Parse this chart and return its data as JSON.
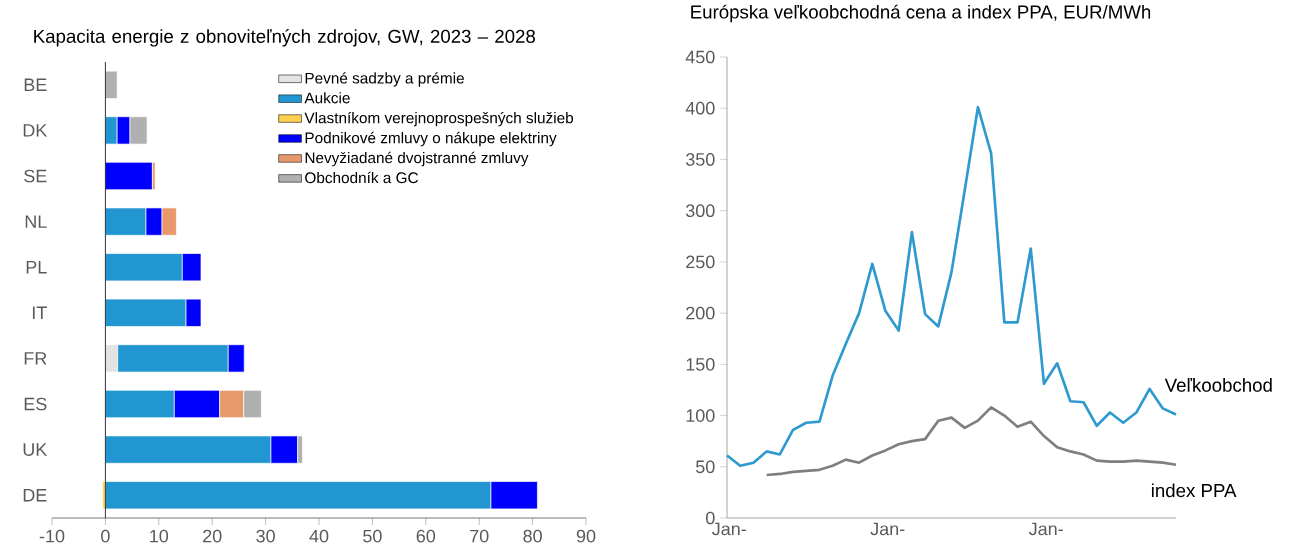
{
  "chart_data": [
    {
      "type": "bar",
      "orientation": "horizontal",
      "stacked": true,
      "title": "Kapacita energie z obnoviteľných zdrojov, GW, 2023 – 2028",
      "categories": [
        "BE",
        "DK",
        "SE",
        "NL",
        "PL",
        "IT",
        "FR",
        "ES",
        "UK",
        "DE"
      ],
      "series": [
        {
          "name": "Pevné sadzby a prémie",
          "color": "#e3e3e3",
          "values": [
            0,
            0,
            0,
            0,
            0,
            0,
            2.3,
            0,
            0,
            0
          ]
        },
        {
          "name": "Aukcie",
          "color": "#2196d0",
          "values": [
            0,
            2.2,
            0,
            7.6,
            14.4,
            15.1,
            20.7,
            12.9,
            31.0,
            72.2
          ]
        },
        {
          "name": "Vlastníkom verejnoprospešných služieb",
          "color": "#ffd04f",
          "values": [
            0,
            0,
            0,
            0,
            0,
            0,
            0,
            0,
            0,
            -0.5
          ]
        },
        {
          "name": "Podnikové zmluvy o nákupe elektriny",
          "color": "#0000ff",
          "values": [
            0,
            2.4,
            8.8,
            3.0,
            3.5,
            2.8,
            3.0,
            8.5,
            5.0,
            8.7
          ]
        },
        {
          "name": "Nevyžiadané dvojstranné zmluvy",
          "color": "#e8996c",
          "values": [
            0,
            0,
            0.5,
            2.7,
            0,
            0,
            0,
            4.5,
            0,
            0
          ]
        },
        {
          "name": "Obchodník a GC",
          "color": "#b0b0b0",
          "values": [
            2.2,
            3.2,
            0,
            0,
            0,
            0,
            0,
            3.3,
            0.9,
            0
          ]
        }
      ],
      "xlim": [
        -10,
        90
      ],
      "xticks": [
        -10,
        0,
        10,
        20,
        30,
        40,
        50,
        60,
        70,
        80,
        90
      ],
      "legend": "top right"
    },
    {
      "type": "line",
      "title": "Európska veľkoobchodná cena a index PPA, EUR/MWh",
      "categories": [
        "Jan-",
        null,
        null,
        null,
        null,
        null,
        null,
        null,
        null,
        null,
        null,
        null,
        "Jan-",
        null,
        null,
        null,
        null,
        null,
        null,
        null,
        null,
        null,
        null,
        null,
        "Jan-",
        null,
        null,
        null,
        null,
        null,
        null,
        null,
        null,
        null,
        null
      ],
      "series": [
        {
          "name": "Veľkoobchod",
          "color": "#2e9ad0",
          "values": [
            61,
            51,
            54,
            65,
            62,
            86,
            93,
            94,
            139,
            170,
            200,
            248,
            202,
            183,
            279,
            199,
            187,
            240,
            320,
            401,
            356,
            191,
            191,
            263,
            131,
            151,
            114,
            113,
            90,
            103,
            93,
            103,
            126,
            107,
            101
          ]
        },
        {
          "name": "index PPA",
          "color": "#7f7f7f",
          "values": [
            null,
            null,
            null,
            42,
            43,
            45,
            46,
            47,
            51,
            57,
            54,
            61,
            66,
            72,
            75,
            77,
            95,
            98,
            88,
            95,
            108,
            100,
            89,
            94,
            80,
            69,
            65,
            62,
            56,
            55,
            55,
            56,
            55,
            54,
            52
          ]
        }
      ],
      "ylim": [
        0,
        450
      ],
      "yticks": [
        0,
        50,
        100,
        150,
        200,
        250,
        300,
        350,
        400,
        450
      ]
    }
  ]
}
